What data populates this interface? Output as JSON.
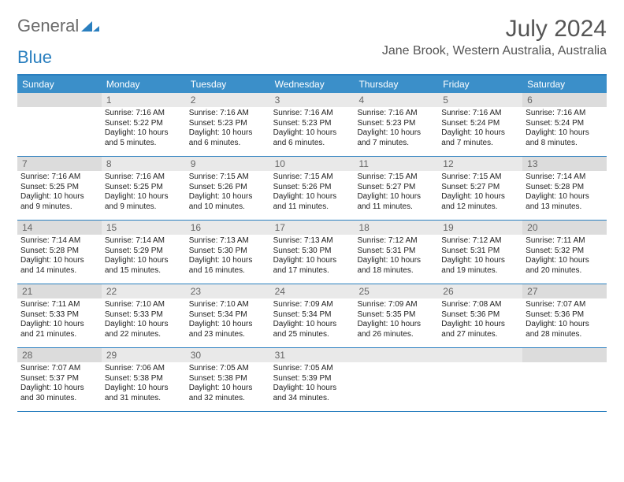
{
  "brand": {
    "part1": "General",
    "part2": "Blue"
  },
  "title": "July 2024",
  "location": "Jane Brook, Western Australia, Australia",
  "colors": {
    "accent": "#3b8fc9",
    "accent_border": "#2a7fbf",
    "day_shade": "#e9e9e9",
    "weekend_shade": "#dcdcdc",
    "text": "#222222",
    "muted": "#666666"
  },
  "weekdays": [
    "Sunday",
    "Monday",
    "Tuesday",
    "Wednesday",
    "Thursday",
    "Friday",
    "Saturday"
  ],
  "weeks": [
    [
      null,
      {
        "n": "1",
        "sr": "7:16 AM",
        "ss": "5:22 PM",
        "dl": "10 hours and 5 minutes."
      },
      {
        "n": "2",
        "sr": "7:16 AM",
        "ss": "5:23 PM",
        "dl": "10 hours and 6 minutes."
      },
      {
        "n": "3",
        "sr": "7:16 AM",
        "ss": "5:23 PM",
        "dl": "10 hours and 6 minutes."
      },
      {
        "n": "4",
        "sr": "7:16 AM",
        "ss": "5:23 PM",
        "dl": "10 hours and 7 minutes."
      },
      {
        "n": "5",
        "sr": "7:16 AM",
        "ss": "5:24 PM",
        "dl": "10 hours and 7 minutes."
      },
      {
        "n": "6",
        "sr": "7:16 AM",
        "ss": "5:24 PM",
        "dl": "10 hours and 8 minutes."
      }
    ],
    [
      {
        "n": "7",
        "sr": "7:16 AM",
        "ss": "5:25 PM",
        "dl": "10 hours and 9 minutes."
      },
      {
        "n": "8",
        "sr": "7:16 AM",
        "ss": "5:25 PM",
        "dl": "10 hours and 9 minutes."
      },
      {
        "n": "9",
        "sr": "7:15 AM",
        "ss": "5:26 PM",
        "dl": "10 hours and 10 minutes."
      },
      {
        "n": "10",
        "sr": "7:15 AM",
        "ss": "5:26 PM",
        "dl": "10 hours and 11 minutes."
      },
      {
        "n": "11",
        "sr": "7:15 AM",
        "ss": "5:27 PM",
        "dl": "10 hours and 11 minutes."
      },
      {
        "n": "12",
        "sr": "7:15 AM",
        "ss": "5:27 PM",
        "dl": "10 hours and 12 minutes."
      },
      {
        "n": "13",
        "sr": "7:14 AM",
        "ss": "5:28 PM",
        "dl": "10 hours and 13 minutes."
      }
    ],
    [
      {
        "n": "14",
        "sr": "7:14 AM",
        "ss": "5:28 PM",
        "dl": "10 hours and 14 minutes."
      },
      {
        "n": "15",
        "sr": "7:14 AM",
        "ss": "5:29 PM",
        "dl": "10 hours and 15 minutes."
      },
      {
        "n": "16",
        "sr": "7:13 AM",
        "ss": "5:30 PM",
        "dl": "10 hours and 16 minutes."
      },
      {
        "n": "17",
        "sr": "7:13 AM",
        "ss": "5:30 PM",
        "dl": "10 hours and 17 minutes."
      },
      {
        "n": "18",
        "sr": "7:12 AM",
        "ss": "5:31 PM",
        "dl": "10 hours and 18 minutes."
      },
      {
        "n": "19",
        "sr": "7:12 AM",
        "ss": "5:31 PM",
        "dl": "10 hours and 19 minutes."
      },
      {
        "n": "20",
        "sr": "7:11 AM",
        "ss": "5:32 PM",
        "dl": "10 hours and 20 minutes."
      }
    ],
    [
      {
        "n": "21",
        "sr": "7:11 AM",
        "ss": "5:33 PM",
        "dl": "10 hours and 21 minutes."
      },
      {
        "n": "22",
        "sr": "7:10 AM",
        "ss": "5:33 PM",
        "dl": "10 hours and 22 minutes."
      },
      {
        "n": "23",
        "sr": "7:10 AM",
        "ss": "5:34 PM",
        "dl": "10 hours and 23 minutes."
      },
      {
        "n": "24",
        "sr": "7:09 AM",
        "ss": "5:34 PM",
        "dl": "10 hours and 25 minutes."
      },
      {
        "n": "25",
        "sr": "7:09 AM",
        "ss": "5:35 PM",
        "dl": "10 hours and 26 minutes."
      },
      {
        "n": "26",
        "sr": "7:08 AM",
        "ss": "5:36 PM",
        "dl": "10 hours and 27 minutes."
      },
      {
        "n": "27",
        "sr": "7:07 AM",
        "ss": "5:36 PM",
        "dl": "10 hours and 28 minutes."
      }
    ],
    [
      {
        "n": "28",
        "sr": "7:07 AM",
        "ss": "5:37 PM",
        "dl": "10 hours and 30 minutes."
      },
      {
        "n": "29",
        "sr": "7:06 AM",
        "ss": "5:38 PM",
        "dl": "10 hours and 31 minutes."
      },
      {
        "n": "30",
        "sr": "7:05 AM",
        "ss": "5:38 PM",
        "dl": "10 hours and 32 minutes."
      },
      {
        "n": "31",
        "sr": "7:05 AM",
        "ss": "5:39 PM",
        "dl": "10 hours and 34 minutes."
      },
      null,
      null,
      null
    ]
  ],
  "labels": {
    "sunrise": "Sunrise:",
    "sunset": "Sunset:",
    "daylight": "Daylight:"
  }
}
